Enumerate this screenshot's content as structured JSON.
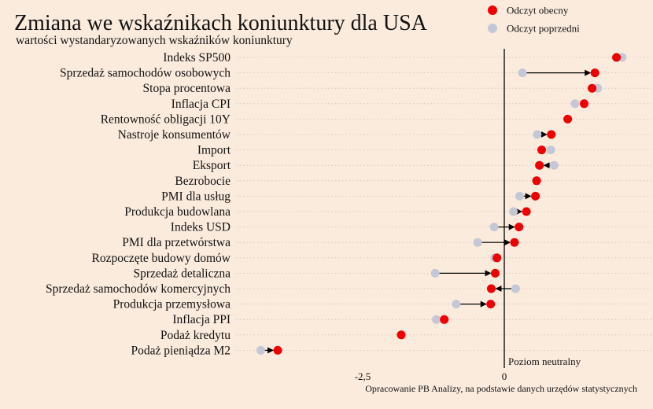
{
  "chart_data": {
    "type": "dot-arrow",
    "title": "Zmiana we wskaźnikach koniunktury dla USA",
    "subtitle": "wartości wystandaryzowanych wskaźników koniunktury",
    "source": "Opracowanie PB Analizy, na podstawie danych urzędów statystycznych",
    "zero_line_label": "Poziom neutralny",
    "xlim": [
      -4.5,
      2.2
    ],
    "x_ticks": [
      -2.5,
      0
    ],
    "x_tick_labels": [
      "-2,5",
      "0"
    ],
    "grid": "horizontal dotted",
    "legend": [
      {
        "name": "Odczyt obecny",
        "color": "#ee0000"
      },
      {
        "name": "Odczyt poprzedni",
        "color": "#c4c7d6"
      }
    ],
    "categories": [
      "Indeks SP500",
      "Sprzedaż samochodów osobowych",
      "Stopa procentowa",
      "Inflacja CPI",
      "Rentowność obligacji 10Y",
      "Nastroje konsumentów",
      "Import",
      "Eksport",
      "Bezrobocie",
      "PMI dla usług",
      "Produkcja budowlana",
      "Indeks USD",
      "PMI dla przetwórstwa",
      "Rozpoczęte budowy domów",
      "Sprzedaż detaliczna",
      "Sprzedaż samochodów komercyjnych",
      "Produkcja przemysłowa",
      "Inflacja PPI",
      "Podaż kredytu",
      "Podaż pieniądza M2"
    ],
    "series": [
      {
        "name": "Odczyt obecny",
        "values": [
          1.98,
          1.6,
          1.55,
          1.41,
          1.12,
          0.83,
          0.66,
          0.62,
          0.57,
          0.55,
          0.39,
          0.26,
          0.18,
          -0.13,
          -0.16,
          -0.23,
          -0.24,
          -1.06,
          -1.82,
          -4.0
        ]
      },
      {
        "name": "Odczyt poprzedni",
        "values": [
          2.08,
          0.32,
          1.65,
          1.25,
          1.12,
          0.58,
          0.82,
          0.88,
          0.57,
          0.27,
          0.16,
          -0.18,
          -0.47,
          -0.17,
          -1.22,
          0.2,
          -0.85,
          -1.2,
          -1.82,
          -4.3
        ]
      }
    ]
  }
}
